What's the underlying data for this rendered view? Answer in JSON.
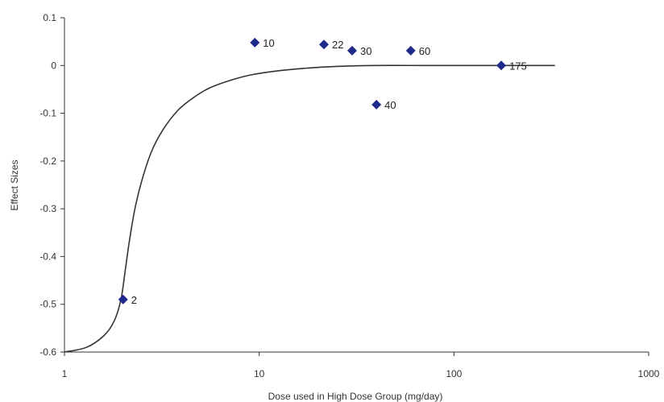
{
  "chart_data": {
    "type": "scatter",
    "xlabel": "Dose used in High Dose Group (mg/day)",
    "ylabel": "Effect Sizes",
    "xscale": "log",
    "xlim": [
      1,
      1000
    ],
    "ylim": [
      -0.6,
      0.1
    ],
    "xticks": [
      1,
      10,
      100,
      1000
    ],
    "xtick_labels": [
      "1",
      "10",
      "100",
      "1000"
    ],
    "yticks": [
      0.1,
      0,
      -0.1,
      -0.2,
      -0.3,
      -0.4,
      -0.5,
      -0.6
    ],
    "ytick_labels": [
      "0.1",
      "0",
      "-0.1",
      "-0.2",
      "-0.3",
      "-0.4",
      "-0.5",
      "-0.6"
    ],
    "grid": false,
    "legend": "none",
    "marker": "diamond",
    "marker_color": "#1f2a8a",
    "curve_color": "#333333",
    "points": [
      {
        "x": 2,
        "y": -0.49,
        "label": "2"
      },
      {
        "x": 9.5,
        "y": 0.048,
        "label": "10"
      },
      {
        "x": 21.5,
        "y": 0.044,
        "label": "22"
      },
      {
        "x": 30,
        "y": 0.031,
        "label": "30"
      },
      {
        "x": 40,
        "y": -0.082,
        "label": "40"
      },
      {
        "x": 60,
        "y": 0.031,
        "label": "60"
      },
      {
        "x": 175,
        "y": 0.0,
        "label": "175"
      }
    ],
    "fit_curve": {
      "x": [
        1,
        1.3,
        1.6,
        1.8,
        1.95,
        2.05,
        2.15,
        2.3,
        2.5,
        2.8,
        3.2,
        3.8,
        4.5,
        5.5,
        7,
        9,
        12,
        17,
        25,
        40,
        70,
        120,
        200,
        330
      ],
      "y": [
        -0.6,
        -0.59,
        -0.565,
        -0.535,
        -0.49,
        -0.43,
        -0.37,
        -0.3,
        -0.24,
        -0.18,
        -0.135,
        -0.095,
        -0.07,
        -0.048,
        -0.032,
        -0.02,
        -0.012,
        -0.006,
        -0.002,
        0.0,
        0.0,
        0.0,
        0.0,
        0.0
      ]
    }
  }
}
